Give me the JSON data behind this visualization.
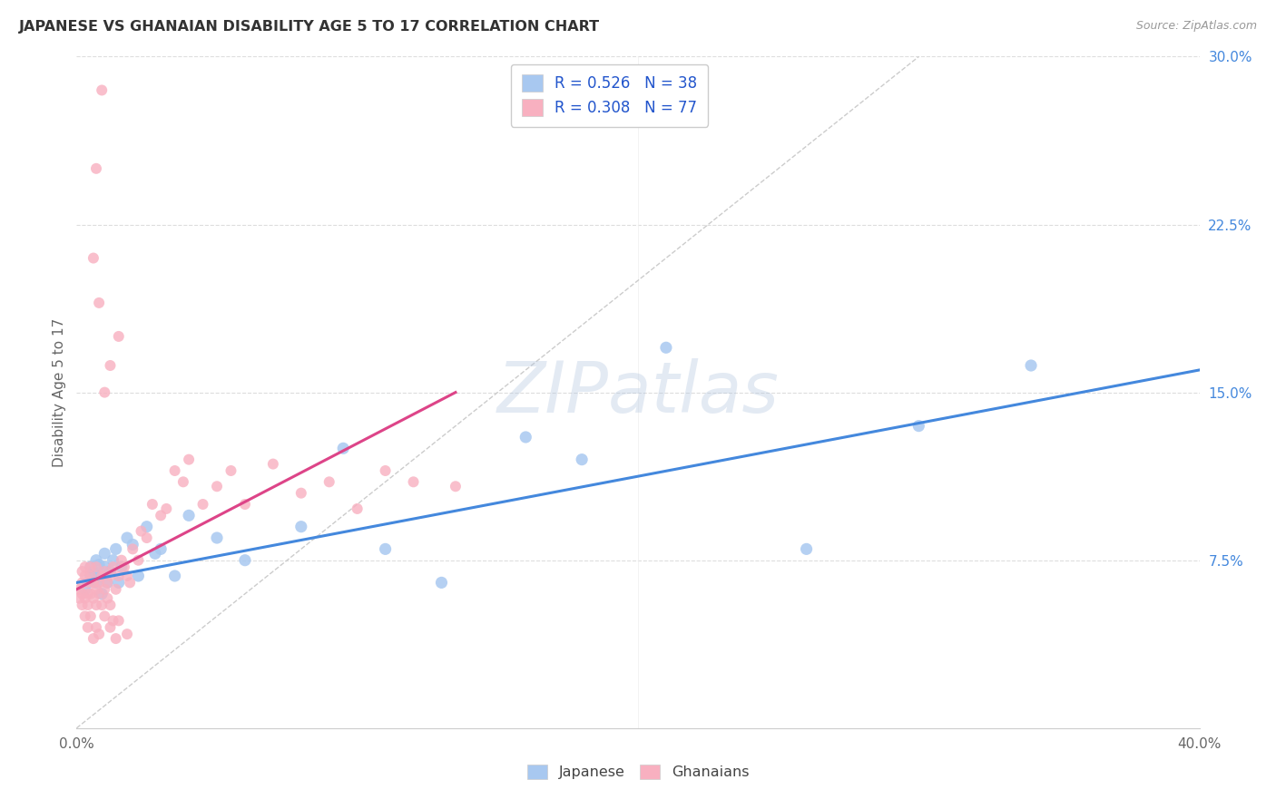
{
  "title": "JAPANESE VS GHANAIAN DISABILITY AGE 5 TO 17 CORRELATION CHART",
  "source": "Source: ZipAtlas.com",
  "ylabel": "Disability Age 5 to 17",
  "xlim": [
    0.0,
    0.4
  ],
  "ylim": [
    0.0,
    0.3
  ],
  "xtick_pos": [
    0.0,
    0.05,
    0.1,
    0.15,
    0.2,
    0.25,
    0.3,
    0.35,
    0.4
  ],
  "xticklabels": [
    "0.0%",
    "",
    "",
    "",
    "",
    "",
    "",
    "",
    "40.0%"
  ],
  "ytick_right_pos": [
    0.0,
    0.075,
    0.15,
    0.225,
    0.3
  ],
  "ytick_right_labels": [
    "",
    "7.5%",
    "15.0%",
    "22.5%",
    "30.0%"
  ],
  "color_japanese": "#a8c8f0",
  "color_ghanaian": "#f8b0c0",
  "color_line_japanese": "#4488dd",
  "color_line_ghanaian": "#dd4488",
  "color_diagonal": "#cccccc",
  "color_grid": "#dddddd",
  "color_title": "#333333",
  "color_source": "#999999",
  "color_ylabel": "#666666",
  "color_legend_text": "#2255cc",
  "color_bottom_legend": "#444444",
  "color_right_axis": "#4488dd",
  "watermark": "ZIPatlas",
  "japanese_x": [
    0.003,
    0.004,
    0.005,
    0.005,
    0.006,
    0.007,
    0.007,
    0.008,
    0.008,
    0.009,
    0.01,
    0.01,
    0.011,
    0.012,
    0.013,
    0.014,
    0.015,
    0.016,
    0.018,
    0.02,
    0.022,
    0.025,
    0.028,
    0.03,
    0.035,
    0.04,
    0.05,
    0.06,
    0.08,
    0.095,
    0.11,
    0.13,
    0.16,
    0.18,
    0.21,
    0.26,
    0.3,
    0.34
  ],
  "japanese_y": [
    0.062,
    0.065,
    0.068,
    0.072,
    0.07,
    0.065,
    0.075,
    0.068,
    0.073,
    0.06,
    0.072,
    0.078,
    0.065,
    0.07,
    0.075,
    0.08,
    0.065,
    0.072,
    0.085,
    0.082,
    0.068,
    0.09,
    0.078,
    0.08,
    0.068,
    0.095,
    0.085,
    0.075,
    0.09,
    0.125,
    0.08,
    0.065,
    0.13,
    0.12,
    0.17,
    0.08,
    0.135,
    0.162
  ],
  "ghanaian_x": [
    0.001,
    0.001,
    0.002,
    0.002,
    0.002,
    0.002,
    0.003,
    0.003,
    0.003,
    0.003,
    0.004,
    0.004,
    0.004,
    0.004,
    0.005,
    0.005,
    0.005,
    0.005,
    0.006,
    0.006,
    0.006,
    0.007,
    0.007,
    0.007,
    0.007,
    0.008,
    0.008,
    0.008,
    0.009,
    0.009,
    0.01,
    0.01,
    0.01,
    0.011,
    0.011,
    0.012,
    0.012,
    0.012,
    0.013,
    0.013,
    0.014,
    0.014,
    0.015,
    0.015,
    0.016,
    0.017,
    0.018,
    0.018,
    0.019,
    0.02,
    0.022,
    0.023,
    0.025,
    0.027,
    0.03,
    0.032,
    0.035,
    0.038,
    0.04,
    0.045,
    0.05,
    0.055,
    0.06,
    0.07,
    0.08,
    0.09,
    0.1,
    0.11,
    0.12,
    0.135,
    0.01,
    0.012,
    0.015,
    0.008,
    0.006,
    0.007,
    0.009
  ],
  "ghanaian_y": [
    0.062,
    0.058,
    0.065,
    0.06,
    0.055,
    0.07,
    0.058,
    0.068,
    0.072,
    0.05,
    0.06,
    0.065,
    0.055,
    0.045,
    0.068,
    0.072,
    0.06,
    0.05,
    0.065,
    0.058,
    0.04,
    0.062,
    0.072,
    0.055,
    0.045,
    0.06,
    0.065,
    0.042,
    0.068,
    0.055,
    0.062,
    0.07,
    0.05,
    0.065,
    0.058,
    0.068,
    0.055,
    0.045,
    0.072,
    0.048,
    0.062,
    0.04,
    0.068,
    0.048,
    0.075,
    0.072,
    0.068,
    0.042,
    0.065,
    0.08,
    0.075,
    0.088,
    0.085,
    0.1,
    0.095,
    0.098,
    0.115,
    0.11,
    0.12,
    0.1,
    0.108,
    0.115,
    0.1,
    0.118,
    0.105,
    0.11,
    0.098,
    0.115,
    0.11,
    0.108,
    0.15,
    0.162,
    0.175,
    0.19,
    0.21,
    0.25,
    0.285
  ]
}
